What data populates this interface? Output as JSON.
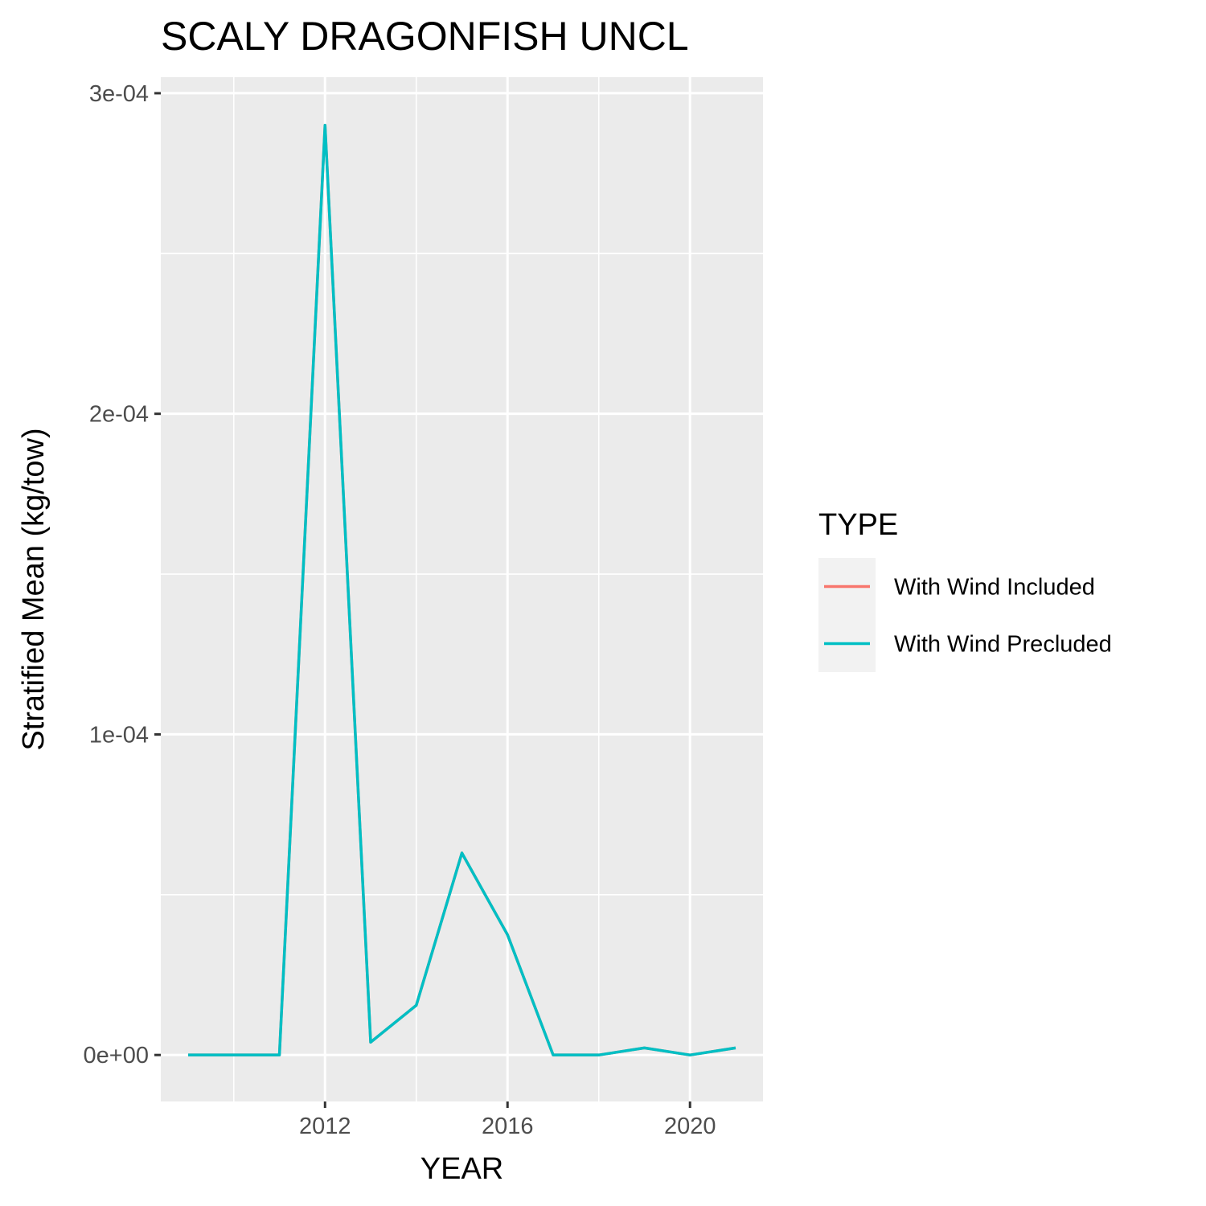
{
  "chart_data": {
    "type": "line",
    "title": "SCALY DRAGONFISH UNCL",
    "xlabel": "YEAR",
    "ylabel": "Stratified Mean (kg/tow)",
    "x": [
      2009,
      2010,
      2011,
      2012,
      2013,
      2014,
      2015,
      2016,
      2017,
      2018,
      2019,
      2020,
      2021
    ],
    "series": [
      {
        "name": "With Wind Included",
        "color": "#F8766D",
        "values": [
          0,
          0,
          0,
          0.00029,
          4e-06,
          1.55e-05,
          6.3e-05,
          3.75e-05,
          0,
          0,
          2.2e-06,
          0,
          2.2e-06
        ]
      },
      {
        "name": "With Wind Precluded",
        "color": "#00BFC4",
        "values": [
          0,
          0,
          0,
          0.00029,
          4e-06,
          1.55e-05,
          6.3e-05,
          3.75e-05,
          0,
          0,
          2.2e-06,
          0,
          2.2e-06
        ]
      }
    ],
    "xlim": [
      2008.4,
      2021.6
    ],
    "ylim": [
      -1.45e-05,
      0.000305
    ],
    "x_major_ticks": [
      2012,
      2016,
      2020
    ],
    "x_tick_labels": [
      "2012",
      "2016",
      "2020"
    ],
    "x_minor_ticks": [
      2010,
      2014,
      2018
    ],
    "y_major_ticks": [
      0,
      0.0001,
      0.0002,
      0.0003
    ],
    "y_tick_labels": [
      "0e+00",
      "1e-04",
      "2e-04",
      "3e-04"
    ],
    "y_minor_ticks": [
      5e-05,
      0.00015,
      0.00025
    ],
    "grid": true,
    "legend": {
      "title": "TYPE",
      "position": "right"
    },
    "colors": {
      "panel_background": "#EBEBEB",
      "grid": "#FFFFFF",
      "legend_key_background": "#F2F2F2"
    }
  }
}
